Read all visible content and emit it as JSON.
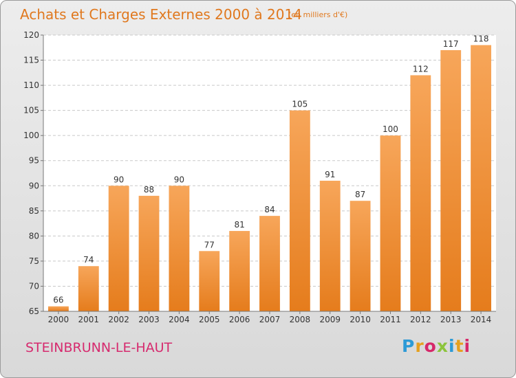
{
  "title": "Achats et Charges Externes 2000 à 2014",
  "title_unit": "(en milliers d'€)",
  "commune": "STEINBRUNN-LE-HAUT",
  "brand": {
    "text": "Proxiti",
    "letters": [
      "P",
      "r",
      "o",
      "x",
      "i",
      "t",
      "i"
    ]
  },
  "colors": {
    "bar_top": "#f7a65a",
    "bar_bottom": "#e57c1c",
    "title": "#e0781e",
    "commune": "#d62a6e"
  },
  "chart_data": {
    "type": "bar",
    "title": "Achats et Charges Externes 2000 à 2014",
    "subtitle": "(en milliers d'€)",
    "xlabel": "",
    "ylabel": "",
    "categories": [
      "2000",
      "2001",
      "2002",
      "2003",
      "2004",
      "2005",
      "2006",
      "2007",
      "2008",
      "2009",
      "2010",
      "2011",
      "2012",
      "2013",
      "2014"
    ],
    "values": [
      66,
      74,
      90,
      88,
      90,
      77,
      81,
      84,
      105,
      91,
      87,
      100,
      112,
      117,
      118
    ],
    "ylim": [
      65,
      120
    ],
    "yticks": [
      65,
      70,
      75,
      80,
      85,
      90,
      95,
      100,
      105,
      110,
      115,
      120
    ],
    "grid": "horizontal dashed",
    "data_labels": true
  }
}
